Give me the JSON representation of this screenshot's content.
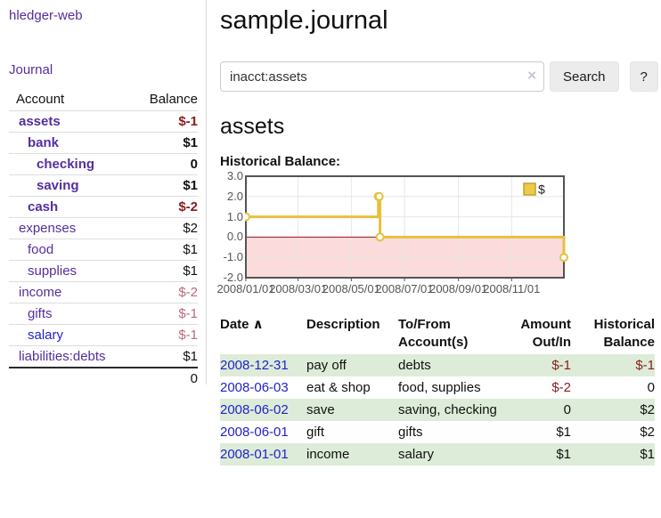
{
  "colors": {
    "link_purple": "#552e9e",
    "link_blue": "#2222cc",
    "negative_strong": "#8b1c1c",
    "negative_soft": "#bb6a78",
    "row_green": "#ddecd8",
    "chart_gold": "#e5c13d",
    "chart_negative_fill": "#fbdbdb",
    "chart_zero_line": "#991111",
    "chart_border": "#545454"
  },
  "app": {
    "title": "hledger-web",
    "nav_journal": "Journal"
  },
  "sidebar": {
    "headers": {
      "account": "Account",
      "balance": "Balance"
    },
    "accounts": [
      {
        "name": "assets",
        "indent": 1,
        "in_query": true,
        "balance": "$-1"
      },
      {
        "name": "bank",
        "indent": 2,
        "in_query": true,
        "balance": "$1"
      },
      {
        "name": "checking",
        "indent": 3,
        "in_query": true,
        "balance": "0"
      },
      {
        "name": "saving",
        "indent": 3,
        "in_query": true,
        "balance": "$1"
      },
      {
        "name": "cash",
        "indent": 2,
        "in_query": true,
        "balance": "$-2"
      },
      {
        "name": "expenses",
        "indent": 1,
        "in_query": false,
        "balance": "$2"
      },
      {
        "name": "food",
        "indent": 2,
        "in_query": false,
        "balance": "$1"
      },
      {
        "name": "supplies",
        "indent": 2,
        "in_query": false,
        "balance": "$1"
      },
      {
        "name": "income",
        "indent": 1,
        "in_query": false,
        "balance": "$-2"
      },
      {
        "name": "gifts",
        "indent": 2,
        "in_query": false,
        "balance": "$-1"
      },
      {
        "name": "salary",
        "indent": 2,
        "in_query": false,
        "balance": "$-1",
        "blue": true
      },
      {
        "name": "liabilities:debts",
        "indent": 1,
        "in_query": false,
        "balance": "$1"
      }
    ],
    "total": "0"
  },
  "header": {
    "title": "sample.journal"
  },
  "search": {
    "value": "inacct:assets",
    "clear_icon": "×",
    "button_label": "Search",
    "help_label": "?"
  },
  "account_page": {
    "heading": "assets",
    "chart_label": "Historical Balance:"
  },
  "chart_data": {
    "type": "line",
    "style": "step",
    "title": "Historical Balance",
    "series": [
      {
        "name": "$",
        "points": [
          [
            "2008-01-01",
            1
          ],
          [
            "2008-06-01",
            2
          ],
          [
            "2008-06-02",
            2
          ],
          [
            "2008-06-03",
            0
          ],
          [
            "2008-12-31",
            -1
          ]
        ]
      }
    ],
    "x_range": [
      "2008-01-01",
      "2008-12-31"
    ],
    "ylim": [
      -2,
      3
    ],
    "y_ticks": [
      "3.0",
      "2.0",
      "1.0",
      "0.0",
      "-1.0",
      "-2.0"
    ],
    "x_ticks": [
      {
        "date": "2008-01-01",
        "label": "2008/01/01"
      },
      {
        "date": "2008-03-01",
        "label": "2008/03/01"
      },
      {
        "date": "2008-05-01",
        "label": "2008/05/01"
      },
      {
        "date": "2008-07-01",
        "label": "2008/07/01"
      },
      {
        "date": "2008-09-01",
        "label": "2008/09/01"
      },
      {
        "date": "2008-11-01",
        "label": "2008/11/01"
      }
    ],
    "legend": {
      "label": "$",
      "position": "top-right"
    },
    "grid": true
  },
  "register": {
    "sort_icon": "∧",
    "columns": [
      {
        "label": "Date",
        "sorted": true,
        "align": "left"
      },
      {
        "label": "Description",
        "align": "left"
      },
      {
        "label": "To/From Account(s)",
        "align": "left"
      },
      {
        "label": "Amount Out/In",
        "align": "right"
      },
      {
        "label": "Historical Balance",
        "align": "right"
      }
    ],
    "rows": [
      {
        "date": "2008-12-31",
        "description": "pay off",
        "accounts": "debts",
        "amount": "$-1",
        "balance": "$-1"
      },
      {
        "date": "2008-06-03",
        "description": "eat & shop",
        "accounts": "food, supplies",
        "amount": "$-2",
        "balance": "0"
      },
      {
        "date": "2008-06-02",
        "description": "save",
        "accounts": "saving, checking",
        "amount": "0",
        "balance": "$2"
      },
      {
        "date": "2008-06-01",
        "description": "gift",
        "accounts": "gifts",
        "amount": "$1",
        "balance": "$2"
      },
      {
        "date": "2008-01-01",
        "description": "income",
        "accounts": "salary",
        "amount": "$1",
        "balance": "$1"
      }
    ]
  }
}
